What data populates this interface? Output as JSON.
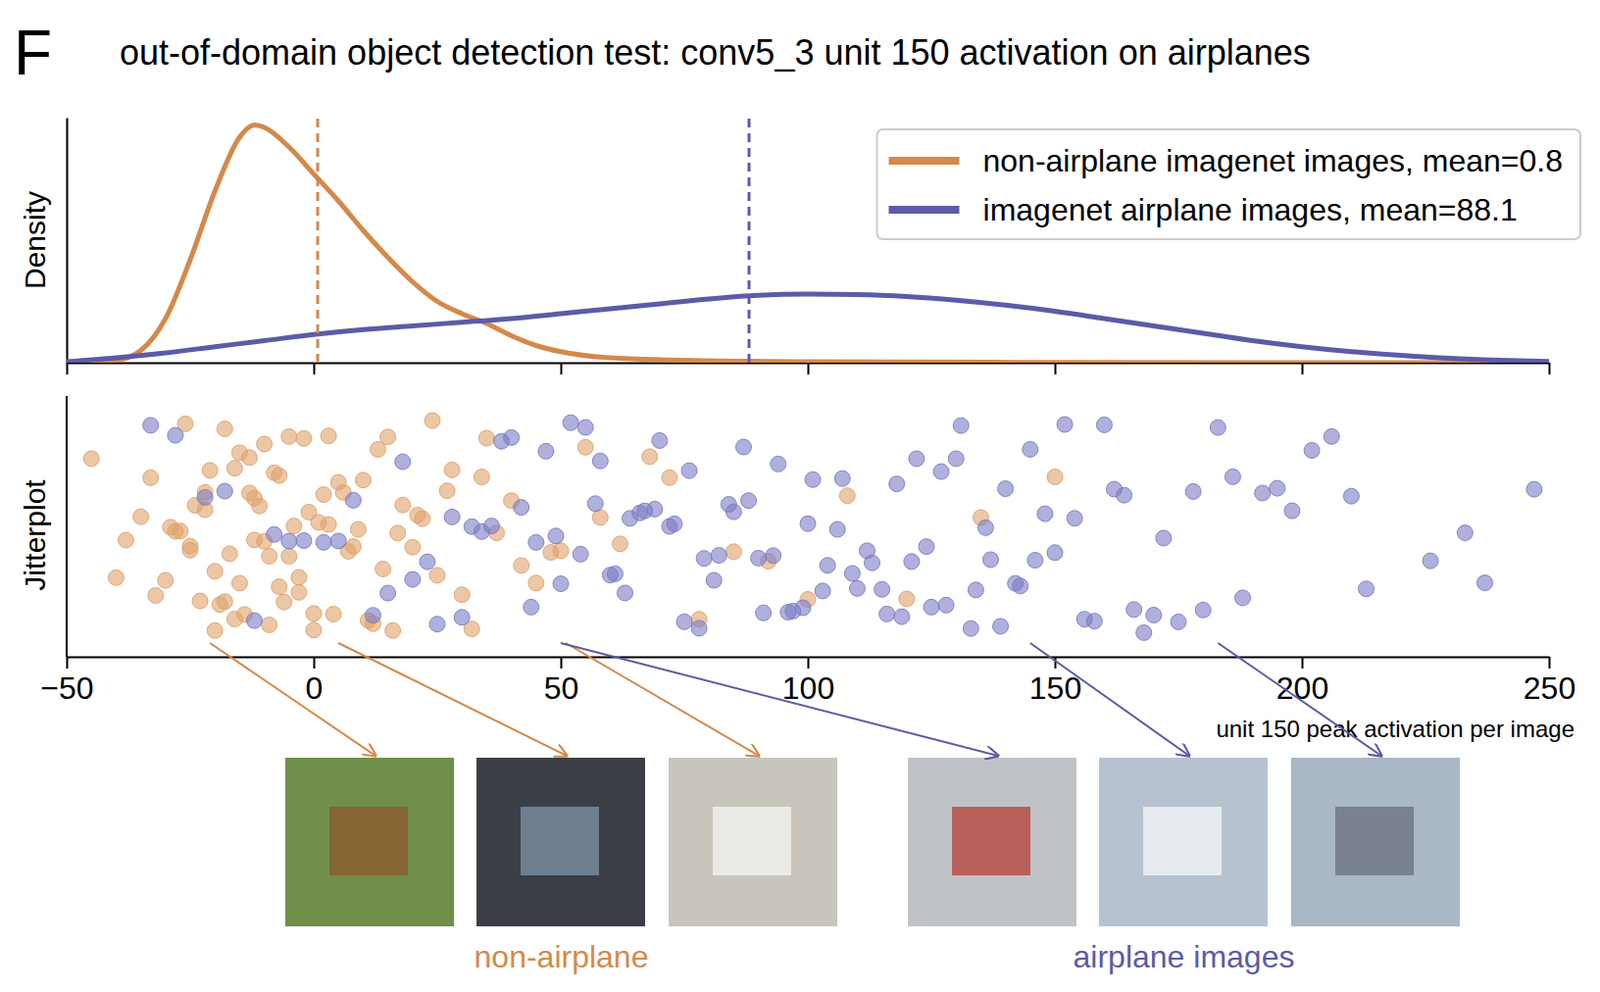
{
  "chart_data": [
    {
      "type": "line",
      "panel_label": "F",
      "title": "out-of-domain object detection test: conv5_3 unit 150 activation on airplanes",
      "ylabel": "Density",
      "xlim": [
        -50,
        250
      ],
      "xticks": [
        -50,
        0,
        50,
        100,
        150,
        200,
        250
      ],
      "ylim": [
        0,
        1
      ],
      "tick_labels": false,
      "legend": "upper right",
      "series": [
        {
          "name": "non-airplane imagenet images, mean=0.8",
          "color": "#d4894a",
          "mean": 0.8,
          "x": [
            -50,
            -40,
            -35,
            -30,
            -25,
            -20,
            -15,
            -12,
            -10,
            -5,
            0,
            5,
            10,
            15,
            20,
            25,
            30,
            35,
            40,
            45,
            50,
            60,
            80,
            100,
            150,
            200,
            250
          ],
          "values": [
            0,
            0.01,
            0.05,
            0.18,
            0.42,
            0.7,
            0.92,
            0.97,
            0.96,
            0.88,
            0.77,
            0.66,
            0.54,
            0.43,
            0.33,
            0.25,
            0.2,
            0.16,
            0.11,
            0.07,
            0.045,
            0.02,
            0.008,
            0.004,
            0.001,
            0,
            0
          ]
        },
        {
          "name": "imagenet airplane images, mean=88.1",
          "color": "#5b5ba8",
          "mean": 88.1,
          "x": [
            -50,
            -40,
            -30,
            -20,
            -10,
            0,
            10,
            20,
            30,
            40,
            50,
            60,
            70,
            80,
            90,
            100,
            110,
            120,
            130,
            140,
            150,
            160,
            170,
            180,
            190,
            200,
            210,
            220,
            230,
            240,
            250
          ],
          "values": [
            0.004,
            0.02,
            0.04,
            0.065,
            0.09,
            0.115,
            0.135,
            0.15,
            0.165,
            0.18,
            0.2,
            0.22,
            0.24,
            0.26,
            0.275,
            0.28,
            0.278,
            0.27,
            0.255,
            0.235,
            0.21,
            0.18,
            0.15,
            0.12,
            0.09,
            0.065,
            0.045,
            0.03,
            0.018,
            0.01,
            0.005
          ]
        }
      ]
    },
    {
      "type": "scatter",
      "ylabel": "Jitterplot",
      "xlabel": "unit 150 peak activation per image",
      "xlim": [
        -50,
        250
      ],
      "xticks": [
        {
          "value": -50,
          "label": "−50"
        },
        {
          "value": 0,
          "label": "0"
        },
        {
          "value": 50,
          "label": "50"
        },
        {
          "value": 100,
          "label": "100"
        },
        {
          "value": 150,
          "label": "150"
        },
        {
          "value": 200,
          "label": "200"
        },
        {
          "value": 250,
          "label": "250"
        }
      ],
      "tick_labels": "x",
      "series": [
        {
          "color": "#e0a26a",
          "x": [
            -45,
            -40,
            -38,
            -35,
            -33,
            -32,
            -30,
            -29,
            -28,
            -27,
            -26,
            -25,
            -25,
            -24,
            -23,
            -22,
            -22,
            -21,
            -20,
            -20,
            -19,
            -18,
            -18,
            -17,
            -16,
            -16,
            -15,
            -15,
            -14,
            -13,
            -13,
            -12,
            -12,
            -11,
            -10,
            -10,
            -9,
            -9,
            -8,
            -7,
            -7,
            -6,
            -5,
            -5,
            -4,
            -3,
            -3,
            -2,
            -1,
            0,
            0,
            1,
            2,
            3,
            3,
            4,
            5,
            6,
            7,
            8,
            9,
            10,
            11,
            12,
            13,
            14,
            15,
            16,
            17,
            18,
            20,
            21,
            22,
            24,
            25,
            27,
            28,
            30,
            32,
            34,
            35,
            37,
            40,
            42,
            45,
            48,
            50,
            55,
            58,
            62,
            68,
            72,
            78,
            85,
            92,
            100,
            108,
            120,
            135,
            150
          ]
        },
        {
          "color": "#7b7bc4",
          "x": [
            -33,
            -28,
            -22,
            -18,
            -12,
            -8,
            -5,
            -2,
            2,
            5,
            8,
            12,
            15,
            18,
            20,
            23,
            25,
            28,
            30,
            32,
            34,
            36,
            38,
            40,
            42,
            44,
            45,
            47,
            49,
            50,
            52,
            54,
            55,
            57,
            58,
            60,
            61,
            63,
            64,
            66,
            67,
            69,
            70,
            72,
            73,
            75,
            76,
            78,
            79,
            81,
            82,
            84,
            85,
            87,
            88,
            90,
            91,
            93,
            94,
            96,
            97,
            99,
            100,
            101,
            103,
            104,
            106,
            107,
            109,
            110,
            112,
            113,
            115,
            116,
            118,
            119,
            121,
            122,
            124,
            125,
            127,
            128,
            130,
            131,
            133,
            134,
            136,
            137,
            139,
            140,
            142,
            143,
            145,
            146,
            148,
            150,
            152,
            154,
            156,
            158,
            160,
            162,
            164,
            166,
            168,
            170,
            172,
            175,
            178,
            180,
            183,
            186,
            188,
            192,
            195,
            198,
            202,
            206,
            210,
            213,
            226,
            233,
            237,
            247
          ]
        }
      ],
      "examples": [
        {
          "label": "non-airplane",
          "color": "#d4894a",
          "x": [
            -21,
            5,
            51
          ]
        },
        {
          "label": "airplane images",
          "color": "#5b5ba8",
          "x": [
            50,
            145,
            183
          ]
        }
      ]
    }
  ]
}
